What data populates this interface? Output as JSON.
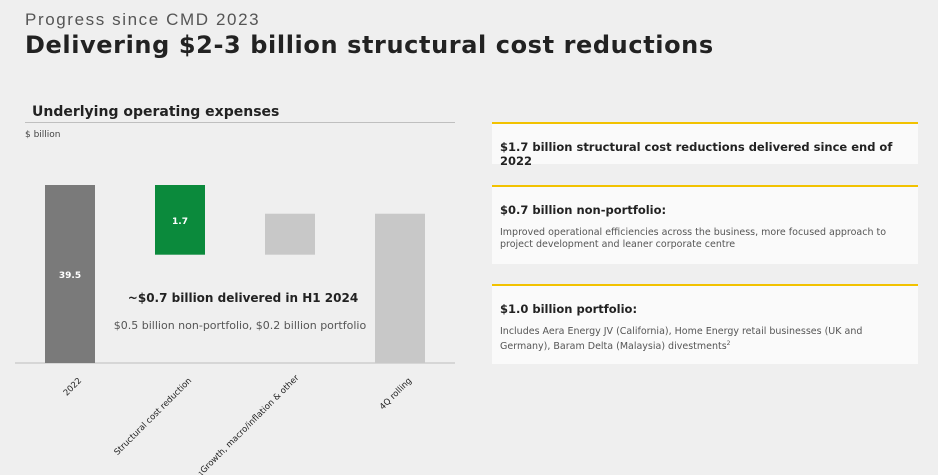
{
  "header": {
    "kicker": "Progress since CMD 2023",
    "title": "Delivering $2-3 billion structural cost reductions"
  },
  "chart_data": {
    "type": "bar",
    "subtype": "waterfall",
    "title": "Underlying operating expenses",
    "unit_label": "$ billion",
    "categories": [
      "2022",
      "Structural cost reduction",
      "Growth, macro/inflation & other",
      "4Q rolling"
    ],
    "category_footnotes": [
      "",
      "",
      "1",
      ""
    ],
    "values": [
      39.5,
      -1.7,
      1.0,
      38.8
    ],
    "value_labels": [
      "39.5",
      "1.7",
      "",
      ""
    ],
    "colors": {
      "total_2022": "#7a7a7a",
      "reduction": "#0b8a3c",
      "other": "#c8c8c8",
      "total_4q": "#c8c8c8"
    },
    "annotation": {
      "headline": "~$0.7 billion delivered in H1 2024",
      "detail": "$0.5 billion non-portfolio, $0.2 billion portfolio"
    }
  },
  "cards": [
    {
      "head": "$1.7 billion structural cost reductions delivered since end of 2022",
      "body": ""
    },
    {
      "head": "$0.7 billion non-portfolio:",
      "body": "Improved operational efficiencies across the business, more focused approach to project development and leaner corporate centre"
    },
    {
      "head": "$1.0 billion portfolio:",
      "body": "Includes Aera Energy JV (California), Home Energy retail businesses (UK and Germany), Baram Delta (Malaysia) divestments",
      "body_footnote": "2"
    }
  ],
  "colors": {
    "accent": "#f2c200",
    "background": "#efefef",
    "card": "#fafafa"
  }
}
